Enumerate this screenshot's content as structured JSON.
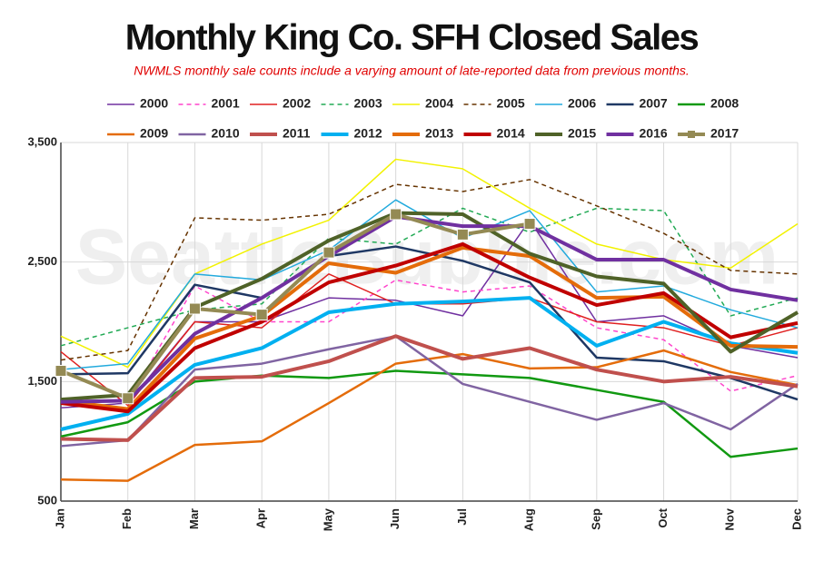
{
  "chart_data": {
    "type": "line",
    "title": "Monthly King Co. SFH Closed Sales",
    "subtitle": "NWMLS monthly sale counts include a varying amount of late-reported  data  from previous months.",
    "watermark": "SeattleBubble.com",
    "categories": [
      "Jan",
      "Feb",
      "Mar",
      "Apr",
      "May",
      "Jun",
      "Jul",
      "Aug",
      "Sep",
      "Oct",
      "Nov",
      "Dec"
    ],
    "ylim": [
      500,
      3500
    ],
    "yticks": [
      {
        "value": 500,
        "label": "500"
      },
      {
        "value": 1500,
        "label": "1,500"
      },
      {
        "value": 2500,
        "label": "2,500"
      },
      {
        "value": 3500,
        "label": "3,500"
      }
    ],
    "grid": true,
    "series": [
      {
        "name": "2000",
        "color": "#7030a0",
        "style": "thin",
        "values": [
          1280,
          1320,
          2000,
          2000,
          2200,
          2180,
          2050,
          2850,
          2000,
          2050,
          1800,
          1700
        ]
      },
      {
        "name": "2001",
        "color": "#ff44cc",
        "style": "dashed",
        "values": [
          1350,
          1330,
          2300,
          2000,
          2000,
          2350,
          2250,
          2300,
          1950,
          1850,
          1420,
          1550
        ]
      },
      {
        "name": "2002",
        "color": "#e02020",
        "style": "thin",
        "values": [
          1750,
          1300,
          2000,
          1950,
          2400,
          2150,
          2150,
          2200,
          2000,
          1950,
          1800,
          1950
        ]
      },
      {
        "name": "2003",
        "color": "#22aa55",
        "style": "dashed",
        "values": [
          1800,
          1950,
          2100,
          2150,
          2700,
          2650,
          2950,
          2750,
          2950,
          2930,
          2050,
          2200
        ]
      },
      {
        "name": "2004",
        "color": "#f2f200",
        "style": "thin",
        "values": [
          1880,
          1620,
          2400,
          2650,
          2850,
          3360,
          3280,
          2950,
          2650,
          2520,
          2450,
          2820
        ]
      },
      {
        "name": "2005",
        "color": "#663300",
        "style": "dashed",
        "values": [
          1680,
          1760,
          2870,
          2850,
          2900,
          3150,
          3090,
          3190,
          2970,
          2740,
          2430,
          2400
        ]
      },
      {
        "name": "2006",
        "color": "#22aadd",
        "style": "thin",
        "values": [
          1600,
          1650,
          2400,
          2350,
          2600,
          3020,
          2700,
          2930,
          2250,
          2300,
          2100,
          1950
        ]
      },
      {
        "name": "2007",
        "color": "#1f3864",
        "style": "medium",
        "values": [
          1560,
          1570,
          2310,
          2200,
          2550,
          2630,
          2510,
          2330,
          1700,
          1670,
          1530,
          1350
        ]
      },
      {
        "name": "2008",
        "color": "#119911",
        "style": "medium",
        "values": [
          1040,
          1160,
          1500,
          1550,
          1530,
          1590,
          1560,
          1530,
          1430,
          1330,
          870,
          940
        ]
      },
      {
        "name": "2009",
        "color": "#e46c0a",
        "style": "medium",
        "values": [
          680,
          670,
          970,
          1000,
          1320,
          1650,
          1730,
          1610,
          1620,
          1760,
          1580,
          1470
        ]
      },
      {
        "name": "2010",
        "color": "#8064a2",
        "style": "medium",
        "values": [
          960,
          1010,
          1600,
          1650,
          1770,
          1880,
          1480,
          1330,
          1180,
          1320,
          1100,
          1480
        ]
      },
      {
        "name": "2011",
        "color": "#c0504d",
        "style": "thick",
        "values": [
          1020,
          1010,
          1530,
          1540,
          1670,
          1880,
          1690,
          1780,
          1600,
          1500,
          1540,
          1460
        ]
      },
      {
        "name": "2012",
        "color": "#00b0f0",
        "style": "thick",
        "values": [
          1100,
          1230,
          1640,
          1780,
          2080,
          2150,
          2170,
          2200,
          1800,
          2000,
          1820,
          1740
        ]
      },
      {
        "name": "2013",
        "color": "#e46c0a",
        "style": "thick",
        "values": [
          1340,
          1270,
          1860,
          2050,
          2490,
          2410,
          2620,
          2550,
          2200,
          2210,
          1800,
          1790
        ]
      },
      {
        "name": "2014",
        "color": "#c00000",
        "style": "thick",
        "values": [
          1320,
          1250,
          1780,
          2000,
          2330,
          2470,
          2650,
          2370,
          2140,
          2240,
          1870,
          1990
        ]
      },
      {
        "name": "2015",
        "color": "#4f6228",
        "style": "thick",
        "values": [
          1350,
          1390,
          2120,
          2360,
          2680,
          2910,
          2900,
          2570,
          2380,
          2320,
          1750,
          2080
        ]
      },
      {
        "name": "2016",
        "color": "#7030a0",
        "style": "thick",
        "values": [
          1330,
          1340,
          1900,
          2200,
          2550,
          2880,
          2800,
          2800,
          2520,
          2520,
          2270,
          2180
        ]
      },
      {
        "name": "2017",
        "color": "#948a54",
        "style": "thick",
        "marker": "square",
        "values": [
          1590,
          1360,
          2110,
          2060,
          2580,
          2900,
          2730,
          2820,
          null,
          null,
          null,
          null
        ]
      }
    ]
  }
}
